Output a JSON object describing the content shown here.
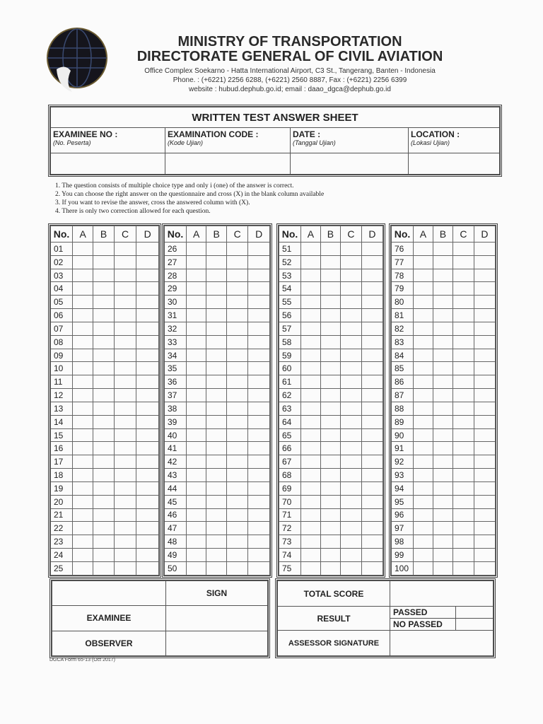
{
  "header": {
    "logo": "ministry-of-transportation-logo",
    "title1": "MINISTRY OF TRANSPORTATION",
    "title2": "DIRECTORATE GENERAL OF CIVIL AVIATION",
    "address": "Office Complex Soekarno - Hatta International Airport, C3 St., Tangerang, Banten - Indonesia",
    "phone": "Phone. : (+6221) 2256 6288, (+6221) 2560 8887, Fax : (+6221) 2256 6399",
    "web": "website : hubud.dephub.go.id; email : daao_dgca@dephub.go.id"
  },
  "info": {
    "title": "WRITTEN TEST ANSWER SHEET",
    "fields": [
      {
        "label": "EXAMINEE NO :",
        "sub": "(No. Peserta)"
      },
      {
        "label": "EXAMINATION CODE :",
        "sub": "(Kode Ujian)"
      },
      {
        "label": "DATE :",
        "sub": "(Tanggal Ujian)"
      },
      {
        "label": "LOCATION :",
        "sub": "(Lokasi Ujian)"
      }
    ]
  },
  "instructions": [
    "1.  The question consists of multiple choice type and only i (one) of the answer is correct.",
    "2.  You can choose the right answer on the questionnaire and cross (X) in the blank column available",
    "3.  If you want to revise the answer, cross the answered column with (X).",
    "4.  There is only two correction allowed for each question."
  ],
  "grid": {
    "headers": [
      "No.",
      "A",
      "B",
      "C",
      "D"
    ],
    "columns": [
      [
        "01",
        "02",
        "03",
        "04",
        "05",
        "06",
        "07",
        "08",
        "09",
        "10",
        "11",
        "12",
        "13",
        "14",
        "15",
        "16",
        "17",
        "18",
        "19",
        "20",
        "21",
        "22",
        "23",
        "24",
        "25"
      ],
      [
        "26",
        "27",
        "28",
        "29",
        "30",
        "31",
        "32",
        "33",
        "34",
        "35",
        "36",
        "37",
        "38",
        "39",
        "40",
        "41",
        "42",
        "43",
        "44",
        "45",
        "46",
        "47",
        "48",
        "49",
        "50"
      ],
      [
        "51",
        "52",
        "53",
        "54",
        "55",
        "56",
        "57",
        "58",
        "59",
        "60",
        "61",
        "62",
        "63",
        "64",
        "65",
        "66",
        "67",
        "68",
        "69",
        "70",
        "71",
        "72",
        "73",
        "74",
        "75"
      ],
      [
        "76",
        "77",
        "78",
        "79",
        "80",
        "81",
        "82",
        "83",
        "84",
        "85",
        "86",
        "87",
        "88",
        "89",
        "90",
        "91",
        "92",
        "93",
        "94",
        "95",
        "96",
        "97",
        "98",
        "99",
        "100"
      ]
    ]
  },
  "signs": {
    "sign": "SIGN",
    "examinee": "EXAMINEE",
    "observer": "OBSERVER"
  },
  "score": {
    "total": "TOTAL SCORE",
    "result": "RESULT",
    "passed": "PASSED",
    "no_passed": "NO PASSED",
    "assessor": "ASSESSOR SIGNATURE"
  },
  "footer": "DGCA Form 65-13 (Oct 2017)"
}
